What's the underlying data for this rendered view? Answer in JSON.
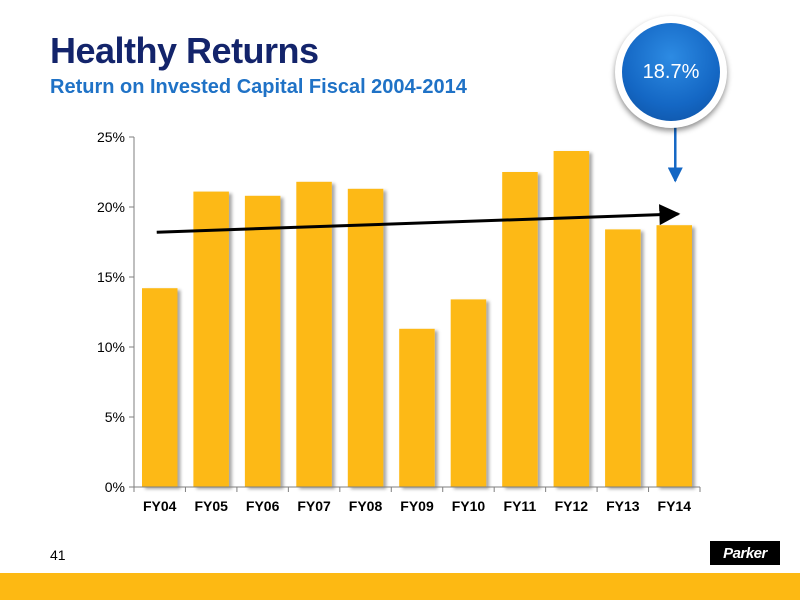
{
  "slide": {
    "title": "Healthy Returns",
    "subtitle": "Return on Invested Capital Fiscal 2004-2014",
    "callout_value": "18.7%",
    "page_number": "41",
    "logo_text": "Parker"
  },
  "colors": {
    "title": "#13246b",
    "subtitle": "#1f72c6",
    "bar": "#fdb913",
    "callout": "#1467c4",
    "trend_line": "#000000",
    "band": "#fdb913"
  },
  "chart_data": {
    "type": "bar",
    "categories": [
      "FY04",
      "FY05",
      "FY06",
      "FY07",
      "FY08",
      "FY09",
      "FY10",
      "FY11",
      "FY12",
      "FY13",
      "FY14"
    ],
    "values": [
      14.2,
      21.1,
      20.8,
      21.8,
      21.3,
      11.3,
      13.4,
      22.5,
      24.0,
      18.4,
      18.7
    ],
    "ylim": [
      0,
      25
    ],
    "yticks": [
      0,
      5,
      10,
      15,
      20,
      25
    ],
    "ytick_labels": [
      "0%",
      "5%",
      "10%",
      "15%",
      "20%",
      "25%"
    ],
    "trend_line": {
      "start": 18.2,
      "end": 19.5
    },
    "callout_arrow_target": "FY14",
    "grid": false,
    "legend": "none"
  }
}
